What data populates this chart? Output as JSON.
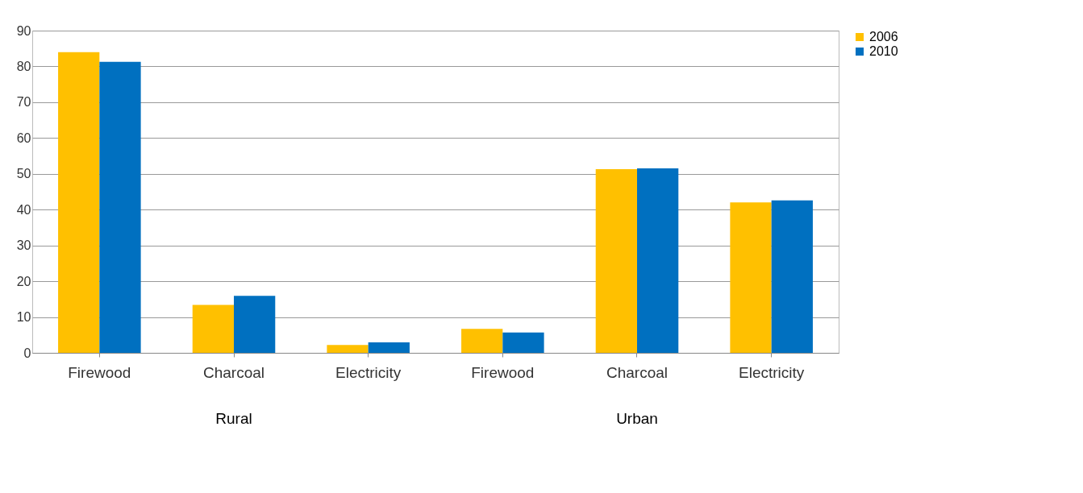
{
  "chart_data": {
    "type": "bar",
    "categories": [
      "Firewood",
      "Charcoal",
      "Electricity",
      "Firewood",
      "Charcoal",
      "Electricity"
    ],
    "series": [
      {
        "name": "2006",
        "color": "#ffc000",
        "values": [
          84,
          13.4,
          2.2,
          6.7,
          51.3,
          42
        ]
      },
      {
        "name": "2010",
        "color": "#0070c0",
        "values": [
          81.3,
          15.9,
          2.9,
          5.7,
          51.5,
          42.6
        ]
      }
    ],
    "annotations": [
      "Rural",
      "Urban"
    ],
    "ylim": [
      0,
      90
    ],
    "yticks": [
      0,
      10,
      20,
      30,
      40,
      50,
      60,
      70,
      80,
      90
    ],
    "grid": "y",
    "legend": "right"
  }
}
